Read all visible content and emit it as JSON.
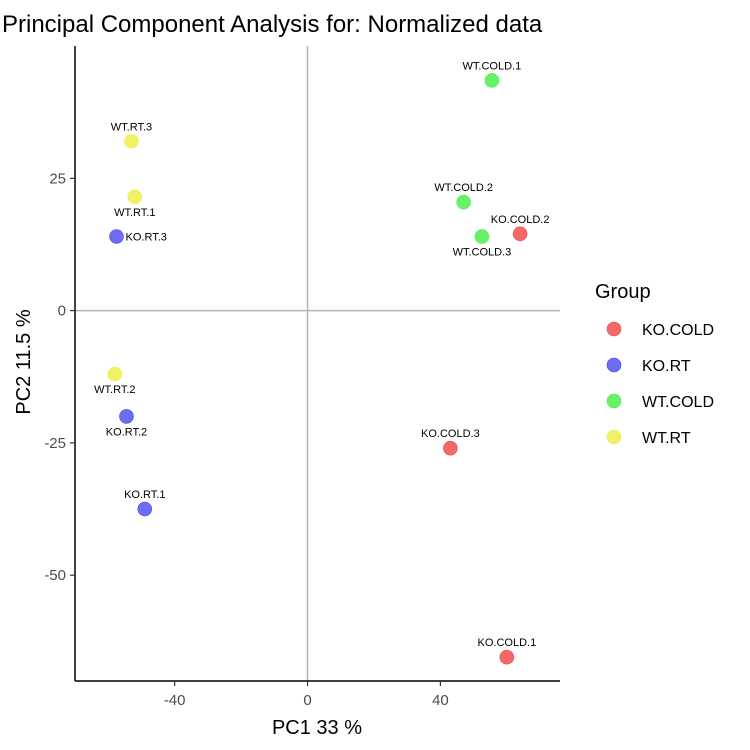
{
  "chart_data": {
    "type": "scatter",
    "title": "Principal Component Analysis for:  Normalized data",
    "xlabel": "PC1 33 %",
    "ylabel": "PC2 11.5 %",
    "xlim": [
      -70,
      76
    ],
    "ylim": [
      -70,
      50
    ],
    "x_ticks": [
      -40,
      0,
      40
    ],
    "y_ticks": [
      25,
      0,
      -25,
      -50
    ],
    "reference_lines": {
      "x": 0,
      "y": 0
    },
    "grid": false,
    "legend": {
      "title": "Group",
      "position": "right",
      "entries": [
        {
          "name": "KO.COLD",
          "color": "#ee4444"
        },
        {
          "name": "KO.RT",
          "color": "#4848ee"
        },
        {
          "name": "WT.COLD",
          "color": "#44ee44"
        },
        {
          "name": "WT.RT",
          "color": "#eeee44"
        }
      ]
    },
    "points": [
      {
        "label": "WT.COLD.1",
        "group": "WT.COLD",
        "x": 55.5,
        "y": 43.5,
        "label_pos": "above"
      },
      {
        "label": "WT.RT.3",
        "group": "WT.RT",
        "x": -53,
        "y": 32,
        "label_pos": "above"
      },
      {
        "label": "WT.RT.1",
        "group": "WT.RT",
        "x": -52,
        "y": 21.5,
        "label_pos": "below"
      },
      {
        "label": "KO.RT.3",
        "group": "KO.RT",
        "x": -57.5,
        "y": 14,
        "label_pos": "right"
      },
      {
        "label": "WT.COLD.2",
        "group": "WT.COLD",
        "x": 47,
        "y": 20.5,
        "label_pos": "above"
      },
      {
        "label": "WT.COLD.3",
        "group": "WT.COLD",
        "x": 52.5,
        "y": 14,
        "label_pos": "below"
      },
      {
        "label": "KO.COLD.2",
        "group": "KO.COLD",
        "x": 64,
        "y": 14.5,
        "label_pos": "above"
      },
      {
        "label": "WT.RT.2",
        "group": "WT.RT",
        "x": -58,
        "y": -12,
        "label_pos": "below"
      },
      {
        "label": "KO.RT.2",
        "group": "KO.RT",
        "x": -54.5,
        "y": -20,
        "label_pos": "below"
      },
      {
        "label": "KO.COLD.3",
        "group": "KO.COLD",
        "x": 43,
        "y": -26,
        "label_pos": "above"
      },
      {
        "label": "KO.RT.1",
        "group": "KO.RT",
        "x": -49,
        "y": -37.5,
        "label_pos": "above"
      },
      {
        "label": "KO.COLD.1",
        "group": "KO.COLD",
        "x": 60,
        "y": -65.5,
        "label_pos": "above"
      }
    ]
  }
}
